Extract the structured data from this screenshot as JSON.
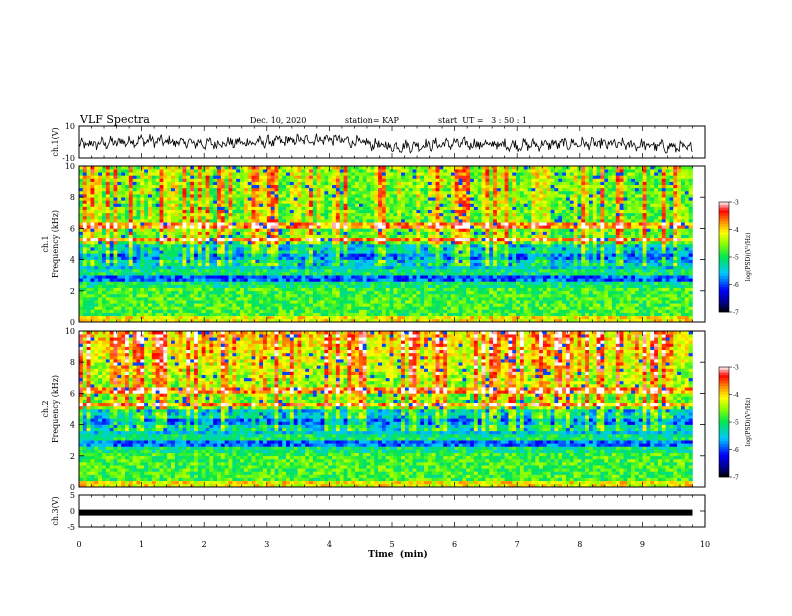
{
  "header": {
    "title": "VLF Spectra",
    "date": "Dec. 10, 2020",
    "station": "station= KAP",
    "start": "start  UT =   3 : 50 : 1"
  },
  "chart_data": [
    {
      "type": "line",
      "ylabel": "ch.1(V)",
      "ylim": [
        -10,
        10
      ],
      "ytick_labels": [
        "10",
        "-10"
      ],
      "xlim": [
        0,
        10
      ],
      "trend": {
        "x": [
          0,
          1,
          2,
          3,
          4,
          5,
          6,
          7,
          8,
          9,
          9.8
        ],
        "y": [
          -2,
          1,
          -1,
          0,
          2,
          -3,
          -1,
          -2,
          -1,
          -2,
          -4
        ]
      }
    },
    {
      "type": "heatmap",
      "ylabel": "ch.1\nFrequency (kHz)",
      "ylim": [
        0,
        10
      ],
      "ytick_labels": [
        "0",
        "2",
        "4",
        "6",
        "8",
        "10"
      ],
      "xlim": [
        0,
        10
      ],
      "colorbar": {
        "label": "log(PSD)(V²/Hz)",
        "range": [
          -7,
          -3
        ],
        "tick_labels": [
          "-3",
          "-4",
          "-5",
          "-6",
          "-7"
        ]
      }
    },
    {
      "type": "heatmap",
      "ylabel": "ch.2\nFrequency (kHz)",
      "ylim": [
        0,
        10
      ],
      "ytick_labels": [
        "0",
        "2",
        "4",
        "6",
        "8",
        "10"
      ],
      "xlim": [
        0,
        10
      ],
      "colorbar": {
        "label": "log(PSD)(V²/Hz)",
        "range": [
          -7,
          -3
        ],
        "tick_labels": [
          "-3",
          "-4",
          "-5",
          "-6",
          "-7"
        ]
      }
    },
    {
      "type": "line",
      "ylabel": "ch.3(V)",
      "ylim": [
        -5,
        5
      ],
      "ytick_labels": [
        "5",
        "0",
        "-5"
      ],
      "xlim": [
        0,
        10
      ],
      "level": -0.5
    }
  ],
  "xaxis": {
    "label": "Time  (min)",
    "tick_labels": [
      "0",
      "1",
      "2",
      "3",
      "4",
      "5",
      "6",
      "7",
      "8",
      "9",
      "10"
    ]
  }
}
